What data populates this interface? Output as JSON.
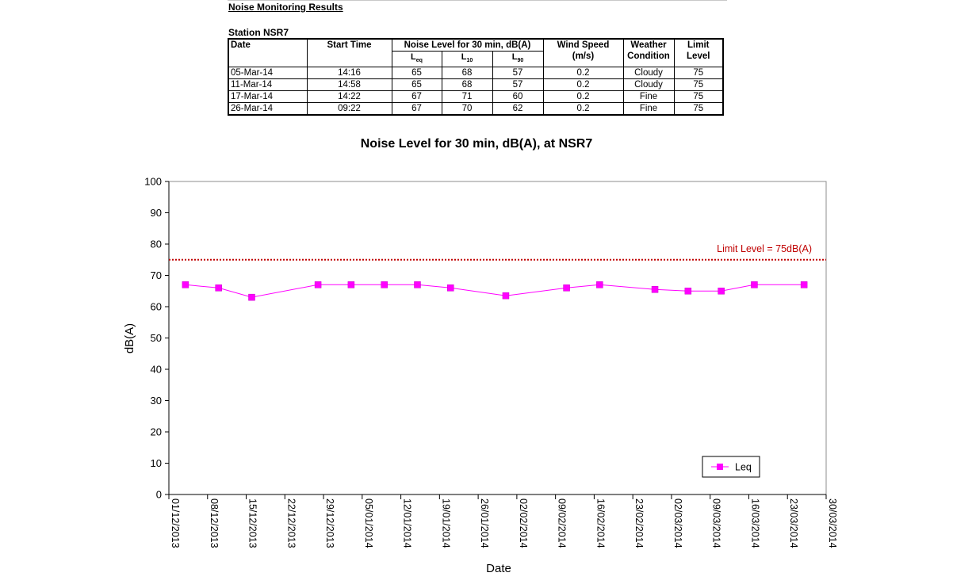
{
  "report": {
    "heading": "Noise Monitoring Results",
    "station": "Station NSR7",
    "headers": {
      "date": "Date",
      "start_time": "Start Time",
      "noise_level": "Noise Level for 30 min, dB(A)",
      "leq_main": "L",
      "leq_sub": "eq",
      "l10_main": "L",
      "l10_sub": "10",
      "l90_main": "L",
      "l90_sub": "90",
      "wind_speed": "Wind Speed",
      "wind_unit": "(m/s)",
      "weather": "Weather",
      "weather2": "Condition",
      "limit": "Limit",
      "limit2": "Level"
    },
    "rows": [
      {
        "date": "05-Mar-14",
        "start": "14:16",
        "leq": "65",
        "l10": "68",
        "l90": "57",
        "wind": "0.2",
        "weather": "Cloudy",
        "limit": "75"
      },
      {
        "date": "11-Mar-14",
        "start": "14:58",
        "leq": "65",
        "l10": "68",
        "l90": "57",
        "wind": "0.2",
        "weather": "Cloudy",
        "limit": "75"
      },
      {
        "date": "17-Mar-14",
        "start": "14:22",
        "leq": "67",
        "l10": "71",
        "l90": "60",
        "wind": "0.2",
        "weather": "Fine",
        "limit": "75"
      },
      {
        "date": "26-Mar-14",
        "start": "09:22",
        "leq": "67",
        "l10": "70",
        "l90": "62",
        "wind": "0.2",
        "weather": "Fine",
        "limit": "75"
      }
    ]
  },
  "chart_data": {
    "type": "line",
    "title": "Noise Level for 30 min, dB(A), at NSR7",
    "xlabel": "Date",
    "ylabel": "dB(A)",
    "ylim": [
      0,
      100
    ],
    "yticks": [
      0,
      10,
      20,
      30,
      40,
      50,
      60,
      70,
      80,
      90,
      100
    ],
    "xlim": [
      "2013-12-01",
      "2014-03-30"
    ],
    "xticks": [
      "01/12/2013",
      "08/12/2013",
      "15/12/2013",
      "22/12/2013",
      "29/12/2013",
      "05/01/2014",
      "12/01/2014",
      "19/01/2014",
      "26/01/2014",
      "02/02/2014",
      "09/02/2014",
      "16/02/2014",
      "23/02/2014",
      "02/03/2014",
      "09/03/2014",
      "16/03/2014",
      "23/03/2014",
      "30/03/2014"
    ],
    "grid": false,
    "legend_position": "bottom-right",
    "series": [
      {
        "name": "Leq",
        "color": "#ff00ff",
        "marker": "square",
        "points": [
          {
            "x": "2013-12-04",
            "y": 67
          },
          {
            "x": "2013-12-10",
            "y": 66
          },
          {
            "x": "2013-12-16",
            "y": 63
          },
          {
            "x": "2013-12-28",
            "y": 67
          },
          {
            "x": "2014-01-03",
            "y": 67
          },
          {
            "x": "2014-01-09",
            "y": 67
          },
          {
            "x": "2014-01-15",
            "y": 67
          },
          {
            "x": "2014-01-21",
            "y": 66
          },
          {
            "x": "2014-01-31",
            "y": 63.5
          },
          {
            "x": "2014-02-11",
            "y": 66
          },
          {
            "x": "2014-02-17",
            "y": 67
          },
          {
            "x": "2014-02-27",
            "y": 65.5
          },
          {
            "x": "2014-03-05",
            "y": 65
          },
          {
            "x": "2014-03-11",
            "y": 65
          },
          {
            "x": "2014-03-17",
            "y": 67
          },
          {
            "x": "2014-03-26",
            "y": 67
          }
        ]
      }
    ],
    "limit_line": {
      "value": 75,
      "label": "Limit Level  = 75dB(A)",
      "color": "#c00000"
    }
  }
}
